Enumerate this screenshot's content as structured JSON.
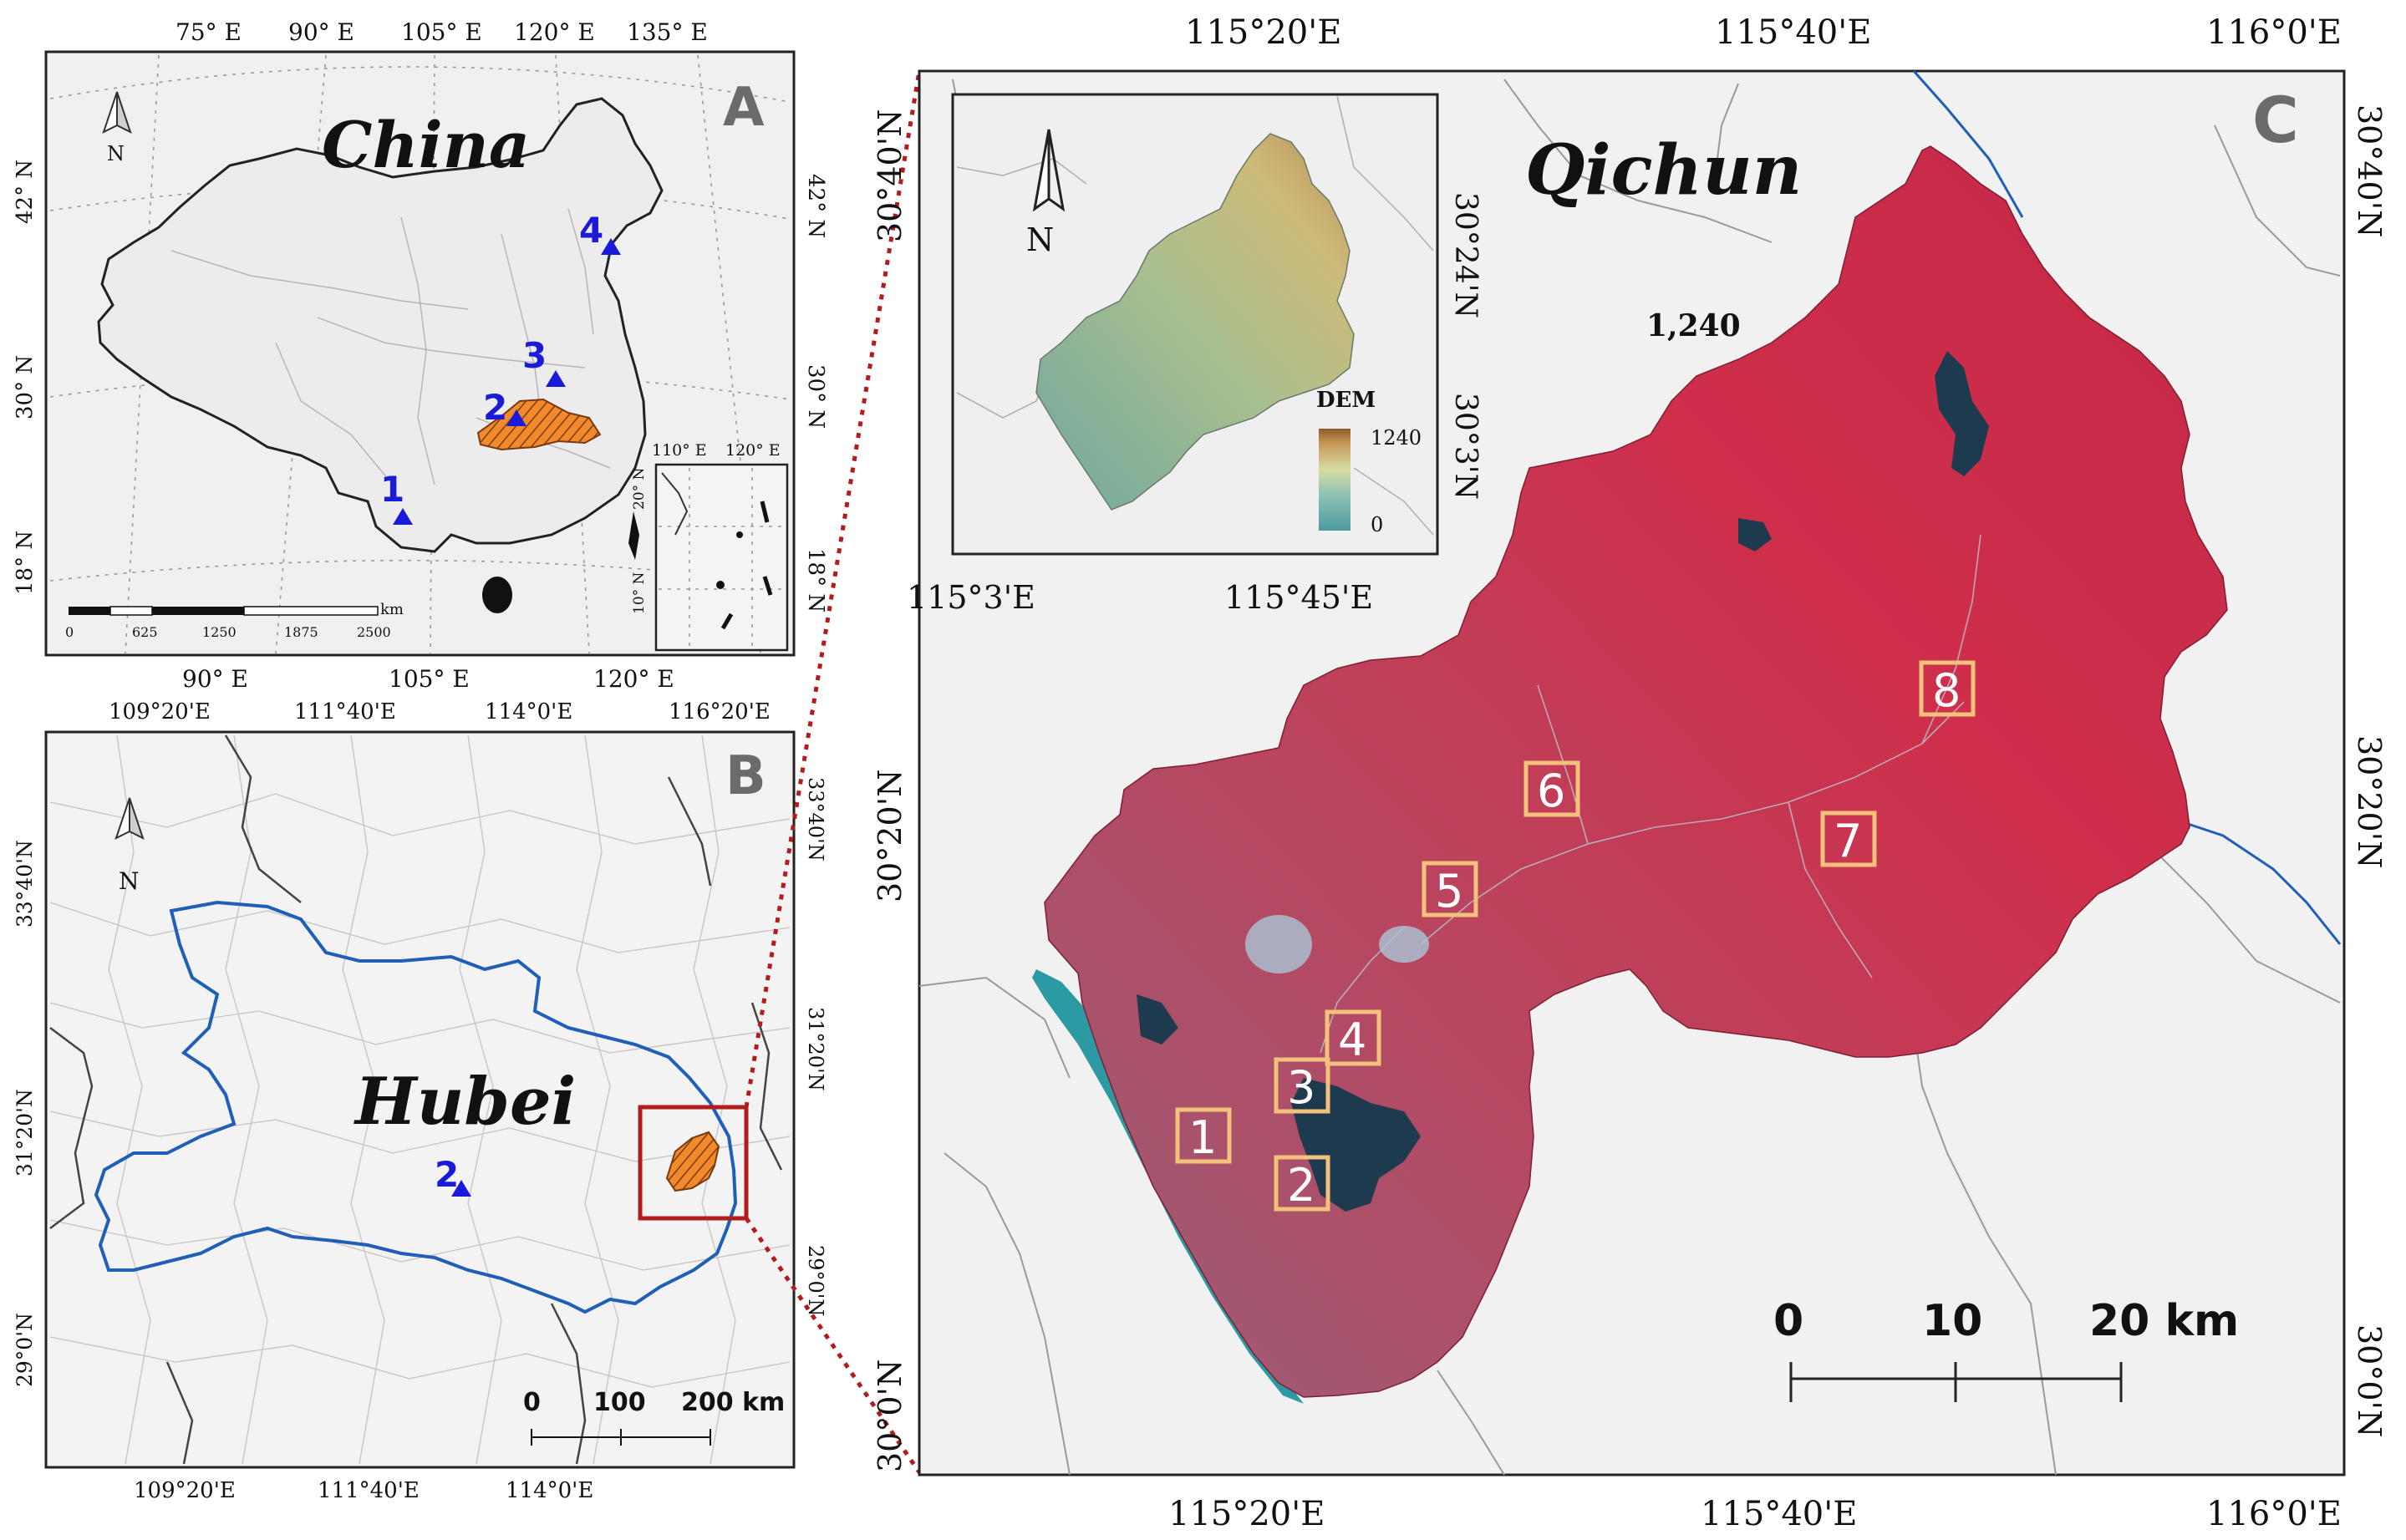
{
  "panel_a": {
    "letter": "A",
    "title": "China",
    "north": "N",
    "top_ticks": [
      "75° E",
      "90° E",
      "105° E",
      "120° E",
      "135° E"
    ],
    "bottom_ticks": [
      "90° E",
      "105° E",
      "120° E"
    ],
    "left_ticks": [
      "42° N",
      "30° N",
      "18° N"
    ],
    "right_ticks": [
      "42° N",
      "30° N",
      "18° N"
    ],
    "sites": [
      "1",
      "2",
      "3",
      "4"
    ],
    "scale_ticks": [
      "0",
      "625",
      "1250",
      "1875",
      "2500"
    ],
    "scale_unit": "km",
    "inset_ticks": [
      "110° E",
      "120° E",
      "20° N",
      "10° N"
    ]
  },
  "panel_b": {
    "letter": "B",
    "title": "Hubei",
    "north": "N",
    "top_ticks": [
      "109°20'E",
      "111°40'E",
      "114°0'E",
      "116°20'E"
    ],
    "bottom_ticks": [
      "109°20'E",
      "111°40'E",
      "114°0'E"
    ],
    "left_ticks": [
      "33°40'N",
      "31°20'N",
      "29°0'N"
    ],
    "right_ticks": [
      "33°40'N",
      "31°20'N",
      "29°0'N"
    ],
    "site": "2",
    "scale_ticks": [
      "0",
      "100",
      "200 km"
    ]
  },
  "panel_c": {
    "letter": "C",
    "title": "Qichun",
    "peak_label": "1,240",
    "top_ticks": [
      "115°20'E",
      "115°40'E",
      "116°0'E"
    ],
    "bottom_ticks": [
      "115°20'E",
      "115°40'E",
      "116°0'E"
    ],
    "left_ticks": [
      "30°40'N",
      "30°20'N",
      "30°0'N"
    ],
    "right_ticks": [
      "30°40'N",
      "30°20'N",
      "30°0'N"
    ],
    "sample_boxes": [
      "1",
      "2",
      "3",
      "4",
      "5",
      "6",
      "7",
      "8"
    ],
    "scale_ticks": [
      "0",
      "10",
      "20 km"
    ],
    "inset": {
      "north": "N",
      "legend_title": "DEM",
      "legend_max": "1240",
      "legend_min": "0",
      "bottom_ticks": [
        "115°3'E",
        "115°45'E"
      ],
      "right_ticks": [
        "30°24'N",
        "30°3'N"
      ]
    }
  },
  "colors": {
    "land": "#f0f0f0",
    "false_color_red": "#cf2f4b",
    "river": "#1f5fb8",
    "yangtze": "#2c9aa3",
    "highlight_orange": "#f08a2a",
    "site_marker": "#1a1ad8",
    "sample_box": "#f2c27c",
    "link_box": "#b31c1c"
  }
}
